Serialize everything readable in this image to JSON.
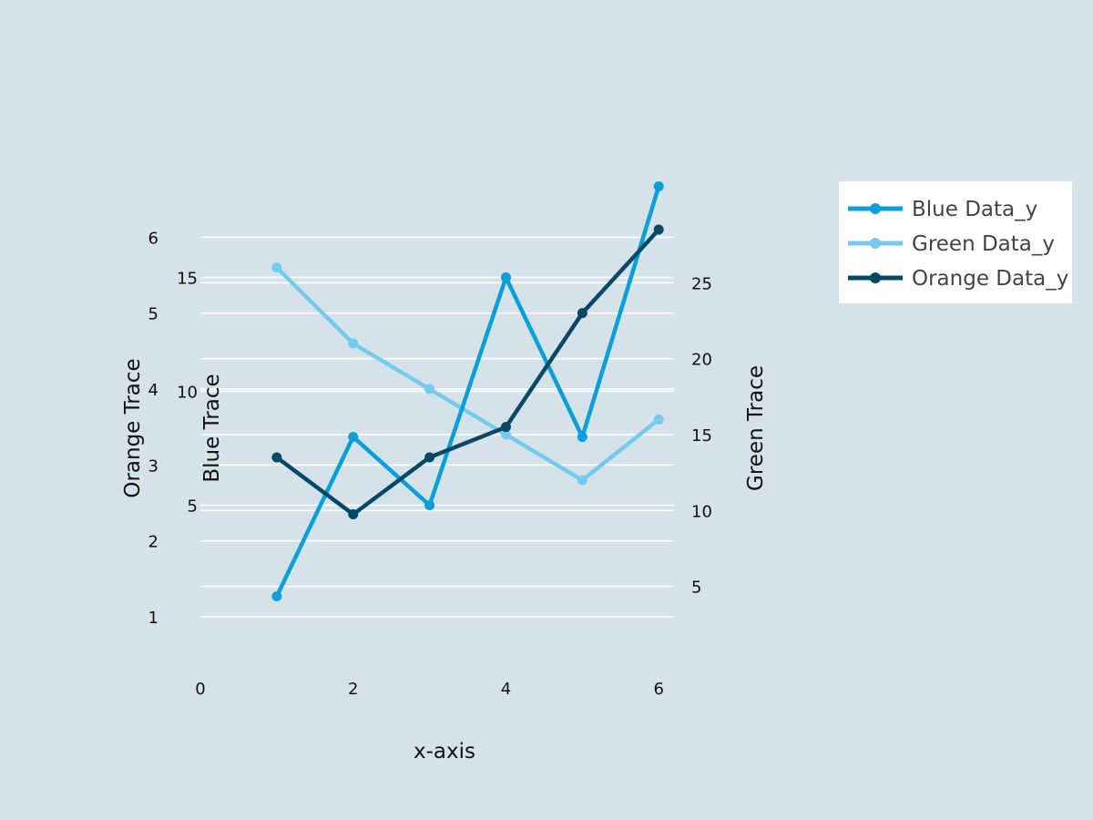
{
  "chart_data": {
    "type": "line",
    "xlabel": "x-axis",
    "x": [
      1,
      2,
      3,
      4,
      5,
      6
    ],
    "xlim": [
      0,
      6.2
    ],
    "x_ticks": [
      "0",
      "2",
      "4",
      "6"
    ],
    "grid": true,
    "legend_placement": "top-right, outside plot",
    "background_color": "#d5e2ea",
    "grid_color": "#ffffff",
    "axes": {
      "orange": {
        "label": "Orange Trace",
        "side": "left",
        "range": [
          0.7,
          6.7
        ],
        "ticks": [
          "1",
          "2",
          "3",
          "4",
          "5",
          "6"
        ]
      },
      "blue": {
        "label": "Blue Trace",
        "side": "left-inner",
        "range": [
          -0.9,
          19.1
        ],
        "ticks": [
          "5",
          "10",
          "15"
        ]
      },
      "green": {
        "label": "Green Trace",
        "side": "right",
        "range": [
          1.5,
          31.5
        ],
        "ticks": [
          "5",
          "10",
          "15",
          "20",
          "25"
        ]
      }
    },
    "series": [
      {
        "name": "Blue Data_y",
        "axis": "blue",
        "color": "#0a9fd8",
        "values": [
          1,
          8,
          5,
          15,
          8,
          19
        ]
      },
      {
        "name": "Green Data_y",
        "axis": "green",
        "color": "#74cbee",
        "values": [
          26,
          21,
          18,
          15,
          12,
          16
        ]
      },
      {
        "name": "Orange Data_y",
        "axis": "orange",
        "color": "#064865",
        "values": [
          3.1,
          2.35,
          3.1,
          3.5,
          5,
          6.1
        ]
      }
    ]
  }
}
